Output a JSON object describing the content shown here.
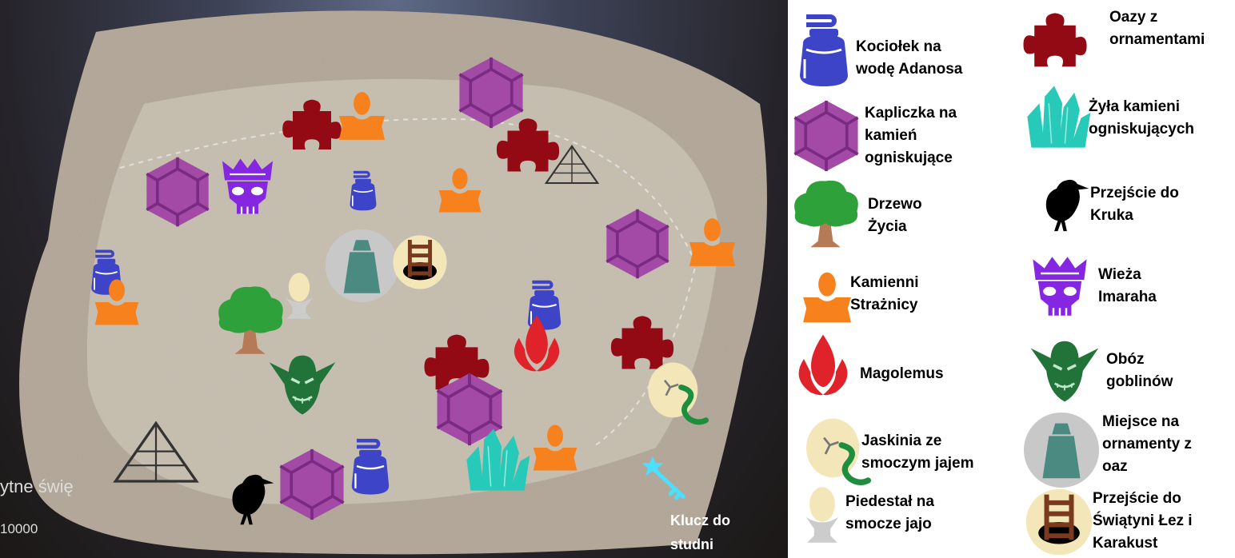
{
  "hud": {
    "shrine_text": "ytne świę",
    "score": "10000"
  },
  "map": {
    "key_label": "Klucz do\nstudni"
  },
  "legend": {
    "items": [
      {
        "icon": "cauldron-icon",
        "label": "Kociołek na\nwodę Adanosa"
      },
      {
        "icon": "gem-shrine-icon",
        "label": "Kapliczka na\nkamień\nogniskujące"
      },
      {
        "icon": "tree-icon",
        "label": "Drzewo\nŻycia"
      },
      {
        "icon": "stone-guardian-icon",
        "label": "Kamienni\nStrażnicy"
      },
      {
        "icon": "flame-icon",
        "label": "Magolemus"
      },
      {
        "icon": "dragon-egg-icon",
        "label": "Jaskinia ze\nsmoczym jajem"
      },
      {
        "icon": "egg-pedestal-icon",
        "label": "Piedestał na\nsmocze jajo"
      },
      {
        "icon": "puzzle-icon",
        "label": "Oazy z\nornamentami"
      },
      {
        "icon": "crystal-icon",
        "label": "Żyła kamieni\nogniskujących"
      },
      {
        "icon": "raven-icon",
        "label": "Przejście do\nKruka"
      },
      {
        "icon": "tower-skull-icon",
        "label": "Wieża\nImaraha"
      },
      {
        "icon": "goblin-icon",
        "label": "Obóz\ngoblinów"
      },
      {
        "icon": "ornament-place-icon",
        "label": "Miejsce na\nornamenty z\noaz"
      },
      {
        "icon": "well-icon",
        "label": "Przejście do\nŚwiątyni Łez i\nKarakust"
      }
    ]
  },
  "colors": {
    "cauldron": "#3d44c8",
    "gem": "#a24aa6",
    "tree": "#2fa13a",
    "trunk": "#b67a56",
    "guardian": "#f7821d",
    "flame": "#e0222a",
    "egg": "#f3e6b8",
    "snake": "#1e8e3e",
    "puzzle": "#930914",
    "crystal": "#27c9b8",
    "raven": "#000000",
    "tower": "#8526e0",
    "goblin": "#21733a",
    "ornament": "#4a8a80",
    "well": "#7a3a1e",
    "key": "#4be0ff"
  }
}
